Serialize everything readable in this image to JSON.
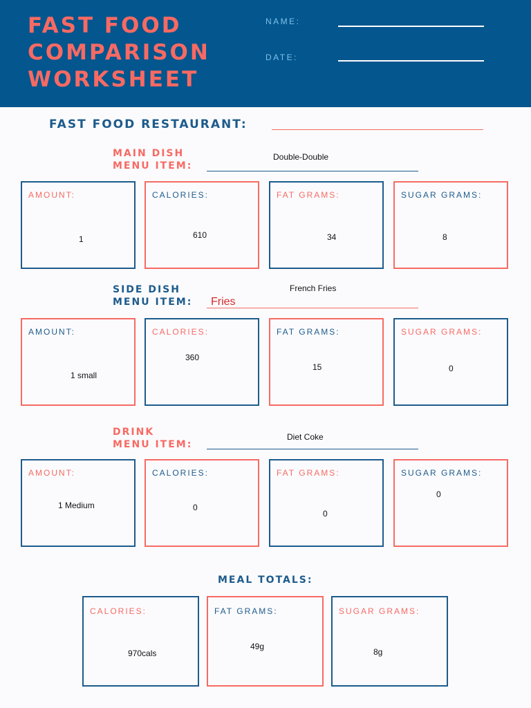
{
  "header": {
    "title_lines": [
      "FAST FOOD",
      "COMPARISON",
      "WORKSHEET"
    ],
    "name_label": "NAME:",
    "date_label": "DATE:"
  },
  "restaurant_label": "FAST FOOD RESTAURANT:",
  "field_labels": {
    "amount": "AMOUNT:",
    "calories": "CALORIES:",
    "fat": "FAT GRAMS:",
    "sugar": "SUGAR GRAMS:"
  },
  "main": {
    "label_line1": "MAIN DISH",
    "label_line2": "MENU ITEM:",
    "item": "Double-Double",
    "amount": "1",
    "calories": "610",
    "fat": "34",
    "sugar": "8"
  },
  "side": {
    "label_line1": "SIDE DISH",
    "label_line2": "MENU ITEM:",
    "item": "French Fries",
    "handwritten": "Fries",
    "amount": "1 small",
    "calories": "360",
    "fat": "15",
    "sugar": "0"
  },
  "drink": {
    "label_line1": "DRINK",
    "label_line2": "MENU ITEM:",
    "item": "Diet Coke",
    "amount": "1 Medium",
    "calories": "0",
    "fat": "0",
    "sugar": "0"
  },
  "totals": {
    "title": "MEAL TOTALS:",
    "calories": "970cals",
    "fat": "49g",
    "sugar": "8g"
  },
  "colors": {
    "navy": "#03568e",
    "blue": "#1d5b8c",
    "coral": "#f76a63",
    "light_blue": "#7fc1ea"
  }
}
